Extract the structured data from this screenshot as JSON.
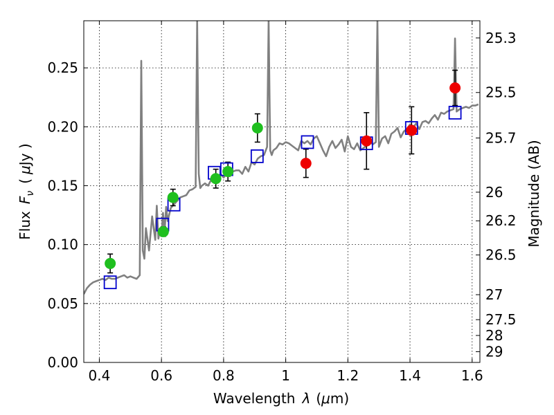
{
  "chart_data": {
    "type": "scatter",
    "title": "",
    "xlabel_prefix": "Wavelength",
    "xlabel_symbol": "λ",
    "xlabel_unit_open": "(",
    "xlabel_unit_mu": "μ",
    "xlabel_unit_rest": "m)",
    "ylabel_prefix": "Flux",
    "ylabel_symbol": "F",
    "ylabel_symbol_sub": "ν",
    "ylabel_unit_open": "(",
    "ylabel_unit_mu": "μ",
    "ylabel_unit_rest": "Jy )",
    "right_ylabel": "Magnitude (AB)",
    "xlim": [
      0.35,
      1.625
    ],
    "ylim": [
      0.0,
      0.29
    ],
    "grid": true,
    "x_ticks": [
      0.4,
      0.6,
      0.8,
      1.0,
      1.2,
      1.4,
      1.6
    ],
    "x_tick_labels": [
      "0.4",
      "0.6",
      "0.8",
      "1",
      "1.2",
      "1.4",
      "1.6"
    ],
    "y_ticks": [
      0.0,
      0.05,
      0.1,
      0.15,
      0.2,
      0.25
    ],
    "y_tick_labels": [
      "0.00",
      "0.05",
      "0.10",
      "0.15",
      "0.20",
      "0.25"
    ],
    "right_ticks": [
      {
        "label": "25.3",
        "flux": 0.2754
      },
      {
        "label": "25.5",
        "flux": 0.2291
      },
      {
        "label": "25.7",
        "flux": 0.1905
      },
      {
        "label": "26",
        "flux": 0.1445
      },
      {
        "label": "26.2",
        "flux": 0.1202
      },
      {
        "label": "26.5",
        "flux": 0.0912
      },
      {
        "label": "27",
        "flux": 0.0575
      },
      {
        "label": "27.5",
        "flux": 0.0363
      },
      {
        "label": "28",
        "flux": 0.0229
      },
      {
        "label": "29",
        "flux": 0.0091
      }
    ],
    "colors": {
      "model_line": "#808080",
      "green_points": "#1fbf1f",
      "red_points": "#ee0000",
      "squares": "#0000cc",
      "errorbar": "#000000"
    },
    "series": [
      {
        "kind": "model",
        "x": [
          0.35,
          0.36,
          0.37,
          0.38,
          0.39,
          0.4,
          0.41,
          0.42,
          0.43,
          0.44,
          0.45,
          0.46,
          0.47,
          0.48,
          0.49,
          0.5,
          0.51,
          0.52,
          0.53,
          0.535,
          0.54,
          0.545,
          0.55,
          0.56,
          0.57,
          0.58,
          0.585,
          0.59,
          0.595,
          0.6,
          0.605,
          0.61,
          0.615,
          0.62,
          0.63,
          0.64,
          0.65,
          0.66,
          0.67,
          0.68,
          0.69,
          0.7,
          0.71,
          0.715,
          0.72,
          0.725,
          0.73,
          0.74,
          0.75,
          0.76,
          0.77,
          0.78,
          0.79,
          0.8,
          0.81,
          0.82,
          0.83,
          0.84,
          0.85,
          0.86,
          0.87,
          0.88,
          0.89,
          0.9,
          0.91,
          0.92,
          0.93,
          0.94,
          0.945,
          0.95,
          0.955,
          0.96,
          0.97,
          0.98,
          0.99,
          1.0,
          1.01,
          1.02,
          1.03,
          1.04,
          1.05,
          1.06,
          1.07,
          1.08,
          1.09,
          1.1,
          1.11,
          1.12,
          1.13,
          1.14,
          1.15,
          1.16,
          1.17,
          1.18,
          1.19,
          1.2,
          1.21,
          1.22,
          1.23,
          1.24,
          1.25,
          1.26,
          1.27,
          1.28,
          1.29,
          1.295,
          1.3,
          1.31,
          1.32,
          1.33,
          1.34,
          1.35,
          1.36,
          1.37,
          1.38,
          1.39,
          1.4,
          1.41,
          1.42,
          1.43,
          1.44,
          1.45,
          1.46,
          1.47,
          1.48,
          1.49,
          1.5,
          1.51,
          1.52,
          1.53,
          1.54,
          1.545,
          1.55,
          1.56,
          1.57,
          1.58,
          1.59,
          1.6,
          1.61,
          1.62
        ],
        "y": [
          0.058,
          0.063,
          0.066,
          0.068,
          0.069,
          0.07,
          0.071,
          0.07,
          0.072,
          0.071,
          0.071,
          0.072,
          0.073,
          0.074,
          0.072,
          0.073,
          0.072,
          0.071,
          0.074,
          0.256,
          0.095,
          0.088,
          0.114,
          0.095,
          0.124,
          0.104,
          0.133,
          0.105,
          0.112,
          0.108,
          0.127,
          0.11,
          0.132,
          0.12,
          0.131,
          0.134,
          0.137,
          0.14,
          0.141,
          0.142,
          0.146,
          0.147,
          0.149,
          0.29,
          0.16,
          0.148,
          0.15,
          0.152,
          0.15,
          0.155,
          0.158,
          0.153,
          0.16,
          0.157,
          0.16,
          0.158,
          0.162,
          0.163,
          0.163,
          0.16,
          0.166,
          0.162,
          0.17,
          0.168,
          0.173,
          0.175,
          0.176,
          0.183,
          0.29,
          0.18,
          0.176,
          0.18,
          0.182,
          0.186,
          0.185,
          0.187,
          0.186,
          0.184,
          0.182,
          0.18,
          0.188,
          0.186,
          0.188,
          0.185,
          0.19,
          0.192,
          0.186,
          0.18,
          0.175,
          0.183,
          0.188,
          0.182,
          0.185,
          0.189,
          0.179,
          0.192,
          0.183,
          0.181,
          0.186,
          0.18,
          0.182,
          0.184,
          0.189,
          0.185,
          0.187,
          0.29,
          0.183,
          0.19,
          0.192,
          0.186,
          0.194,
          0.196,
          0.199,
          0.191,
          0.196,
          0.198,
          0.202,
          0.199,
          0.203,
          0.198,
          0.204,
          0.205,
          0.203,
          0.207,
          0.21,
          0.206,
          0.212,
          0.211,
          0.213,
          0.214,
          0.215,
          0.275,
          0.213,
          0.215,
          0.216,
          0.217,
          0.216,
          0.218,
          0.218,
          0.219
        ]
      },
      {
        "kind": "green",
        "points": [
          {
            "x": 0.435,
            "y": 0.084,
            "err": 0.008
          },
          {
            "x": 0.606,
            "y": 0.111,
            "err": 0.004
          },
          {
            "x": 0.637,
            "y": 0.14,
            "err": 0.007
          },
          {
            "x": 0.775,
            "y": 0.156,
            "err": 0.008
          },
          {
            "x": 0.814,
            "y": 0.162,
            "err": 0.008
          },
          {
            "x": 0.909,
            "y": 0.199,
            "err": 0.012
          }
        ]
      },
      {
        "kind": "red",
        "points": [
          {
            "x": 1.065,
            "y": 0.169,
            "err": 0.012
          },
          {
            "x": 1.26,
            "y": 0.188,
            "err": 0.024
          },
          {
            "x": 1.405,
            "y": 0.197,
            "err": 0.02
          },
          {
            "x": 1.545,
            "y": 0.233,
            "err": 0.015
          }
        ]
      },
      {
        "kind": "squares",
        "points": [
          {
            "x": 0.435,
            "y": 0.068
          },
          {
            "x": 0.604,
            "y": 0.117
          },
          {
            "x": 0.64,
            "y": 0.134
          },
          {
            "x": 0.77,
            "y": 0.161
          },
          {
            "x": 0.81,
            "y": 0.164
          },
          {
            "x": 0.908,
            "y": 0.175
          },
          {
            "x": 1.07,
            "y": 0.187
          },
          {
            "x": 1.26,
            "y": 0.186
          },
          {
            "x": 1.405,
            "y": 0.199
          },
          {
            "x": 1.545,
            "y": 0.212
          }
        ]
      }
    ]
  }
}
